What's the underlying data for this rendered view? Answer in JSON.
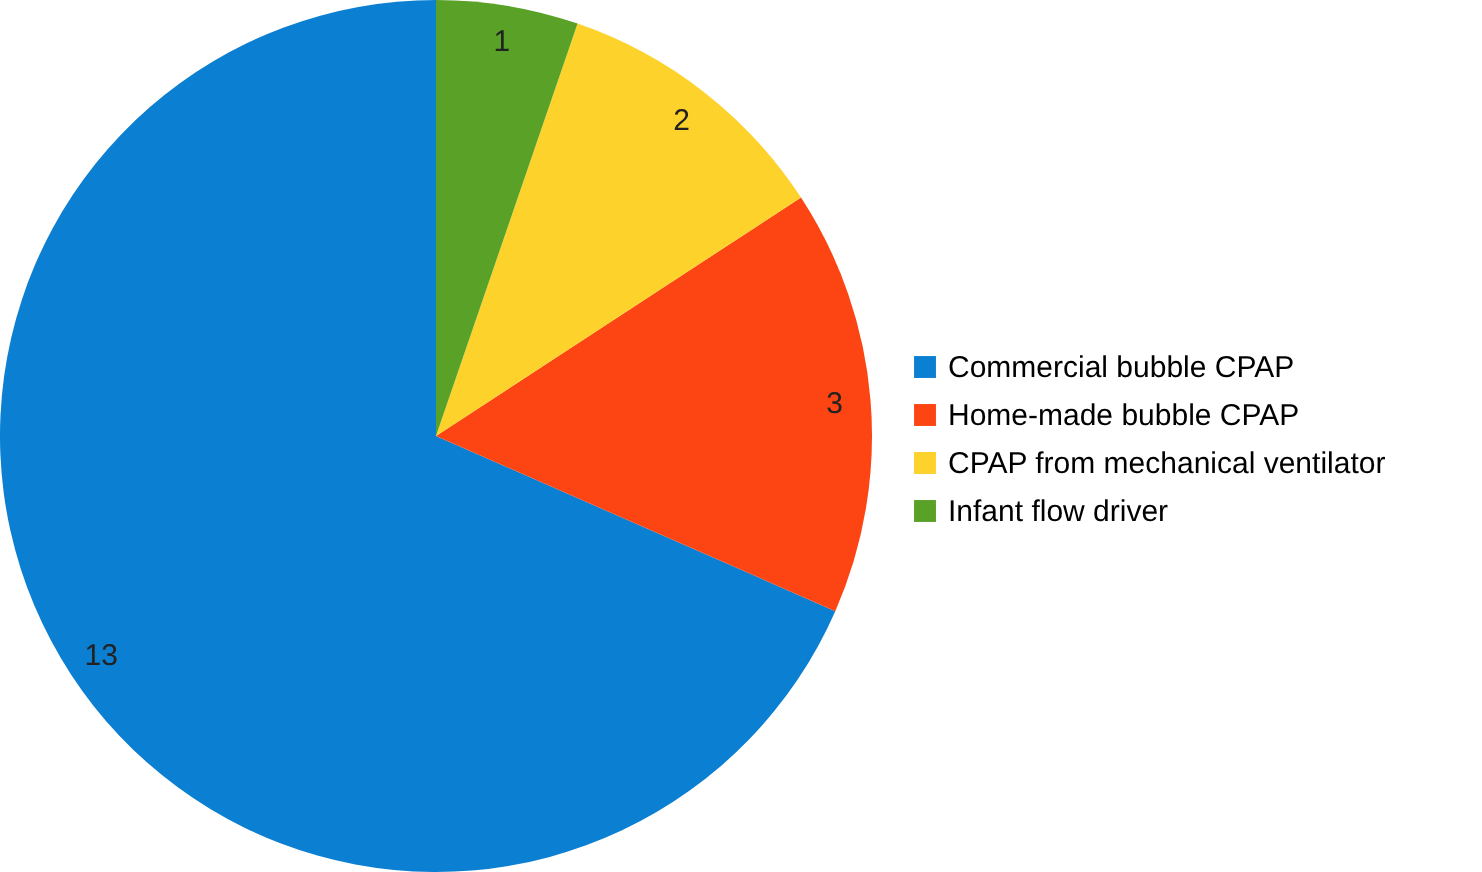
{
  "chart_data": {
    "type": "pie",
    "categories": [
      "Commercial bubble CPAP",
      "Home-made bubble CPAP",
      "CPAP from mechanical ventilator",
      "Infant flow driver"
    ],
    "values": [
      13,
      3,
      2,
      1
    ],
    "colors": [
      "#0b7fd1",
      "#fc4512",
      "#fdd22b",
      "#59a127"
    ],
    "data_labels": true,
    "legend": "right"
  }
}
